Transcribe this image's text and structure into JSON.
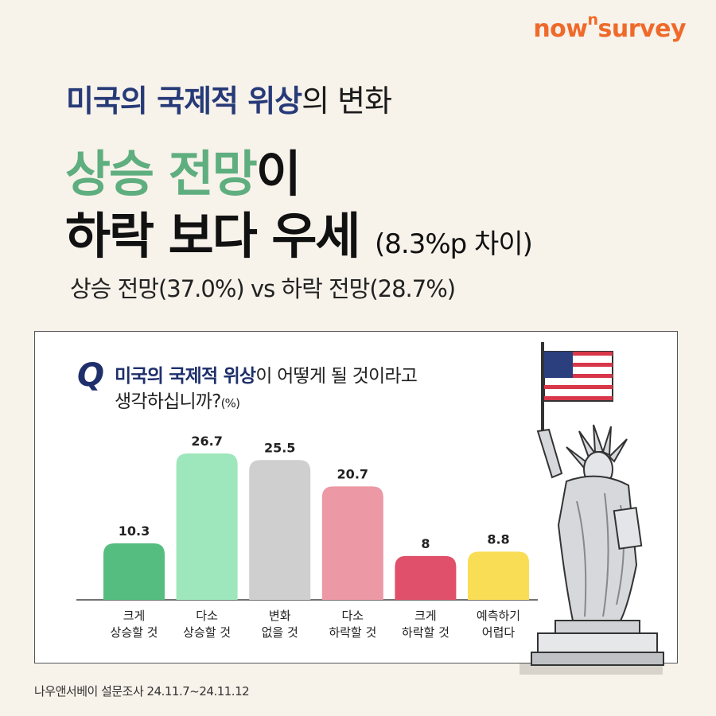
{
  "brand": {
    "pre": "now",
    "sup": "n",
    "post": "survey"
  },
  "subtitle": {
    "strong": "미국의 국제적 위상",
    "rest": "의 변화"
  },
  "headline": {
    "line1_green": "상승 전망",
    "line1_rest": "이",
    "line2": "하락 보다 우세",
    "diff": "(8.3%p 차이)"
  },
  "comparison": "상승 전망(37.0%) vs 하락 전망(28.7%)",
  "question": {
    "mark": "Q",
    "strong": "미국의 국제적 위상",
    "rest": "이 어떻게 될 것이라고",
    "line2": "생각하십니까?",
    "unit": "(%)"
  },
  "colors": {
    "accent": "#ef6a2a",
    "navy": "#273a78",
    "green": "#5fae7f",
    "background": "#f7f2ea"
  },
  "chart_data": {
    "type": "bar",
    "title": "미국의 국제적 위상이 어떻게 될 것이라고 생각하십니까?",
    "unit": "%",
    "categories": [
      [
        "크게",
        "상승할 것"
      ],
      [
        "다소",
        "상승할 것"
      ],
      [
        "변화",
        "없을 것"
      ],
      [
        "다소",
        "하락할 것"
      ],
      [
        "크게",
        "하락할 것"
      ],
      [
        "예측하기",
        "어렵다"
      ]
    ],
    "values": [
      10.3,
      26.7,
      25.5,
      20.7,
      8,
      8.8
    ],
    "value_labels": [
      "10.3",
      "26.7",
      "25.5",
      "20.7",
      "8",
      "8.8"
    ],
    "colors": [
      "#55bd80",
      "#9ee6bb",
      "#cfcfcf",
      "#ec98a5",
      "#e0506a",
      "#f9dd55"
    ],
    "ylim": [
      0,
      26.7
    ],
    "grid": false,
    "legend": "none"
  },
  "illustration": {
    "name": "statue-of-liberty-with-us-flag"
  },
  "source": "나우앤서베이 설문조사 24.11.7~24.11.12"
}
